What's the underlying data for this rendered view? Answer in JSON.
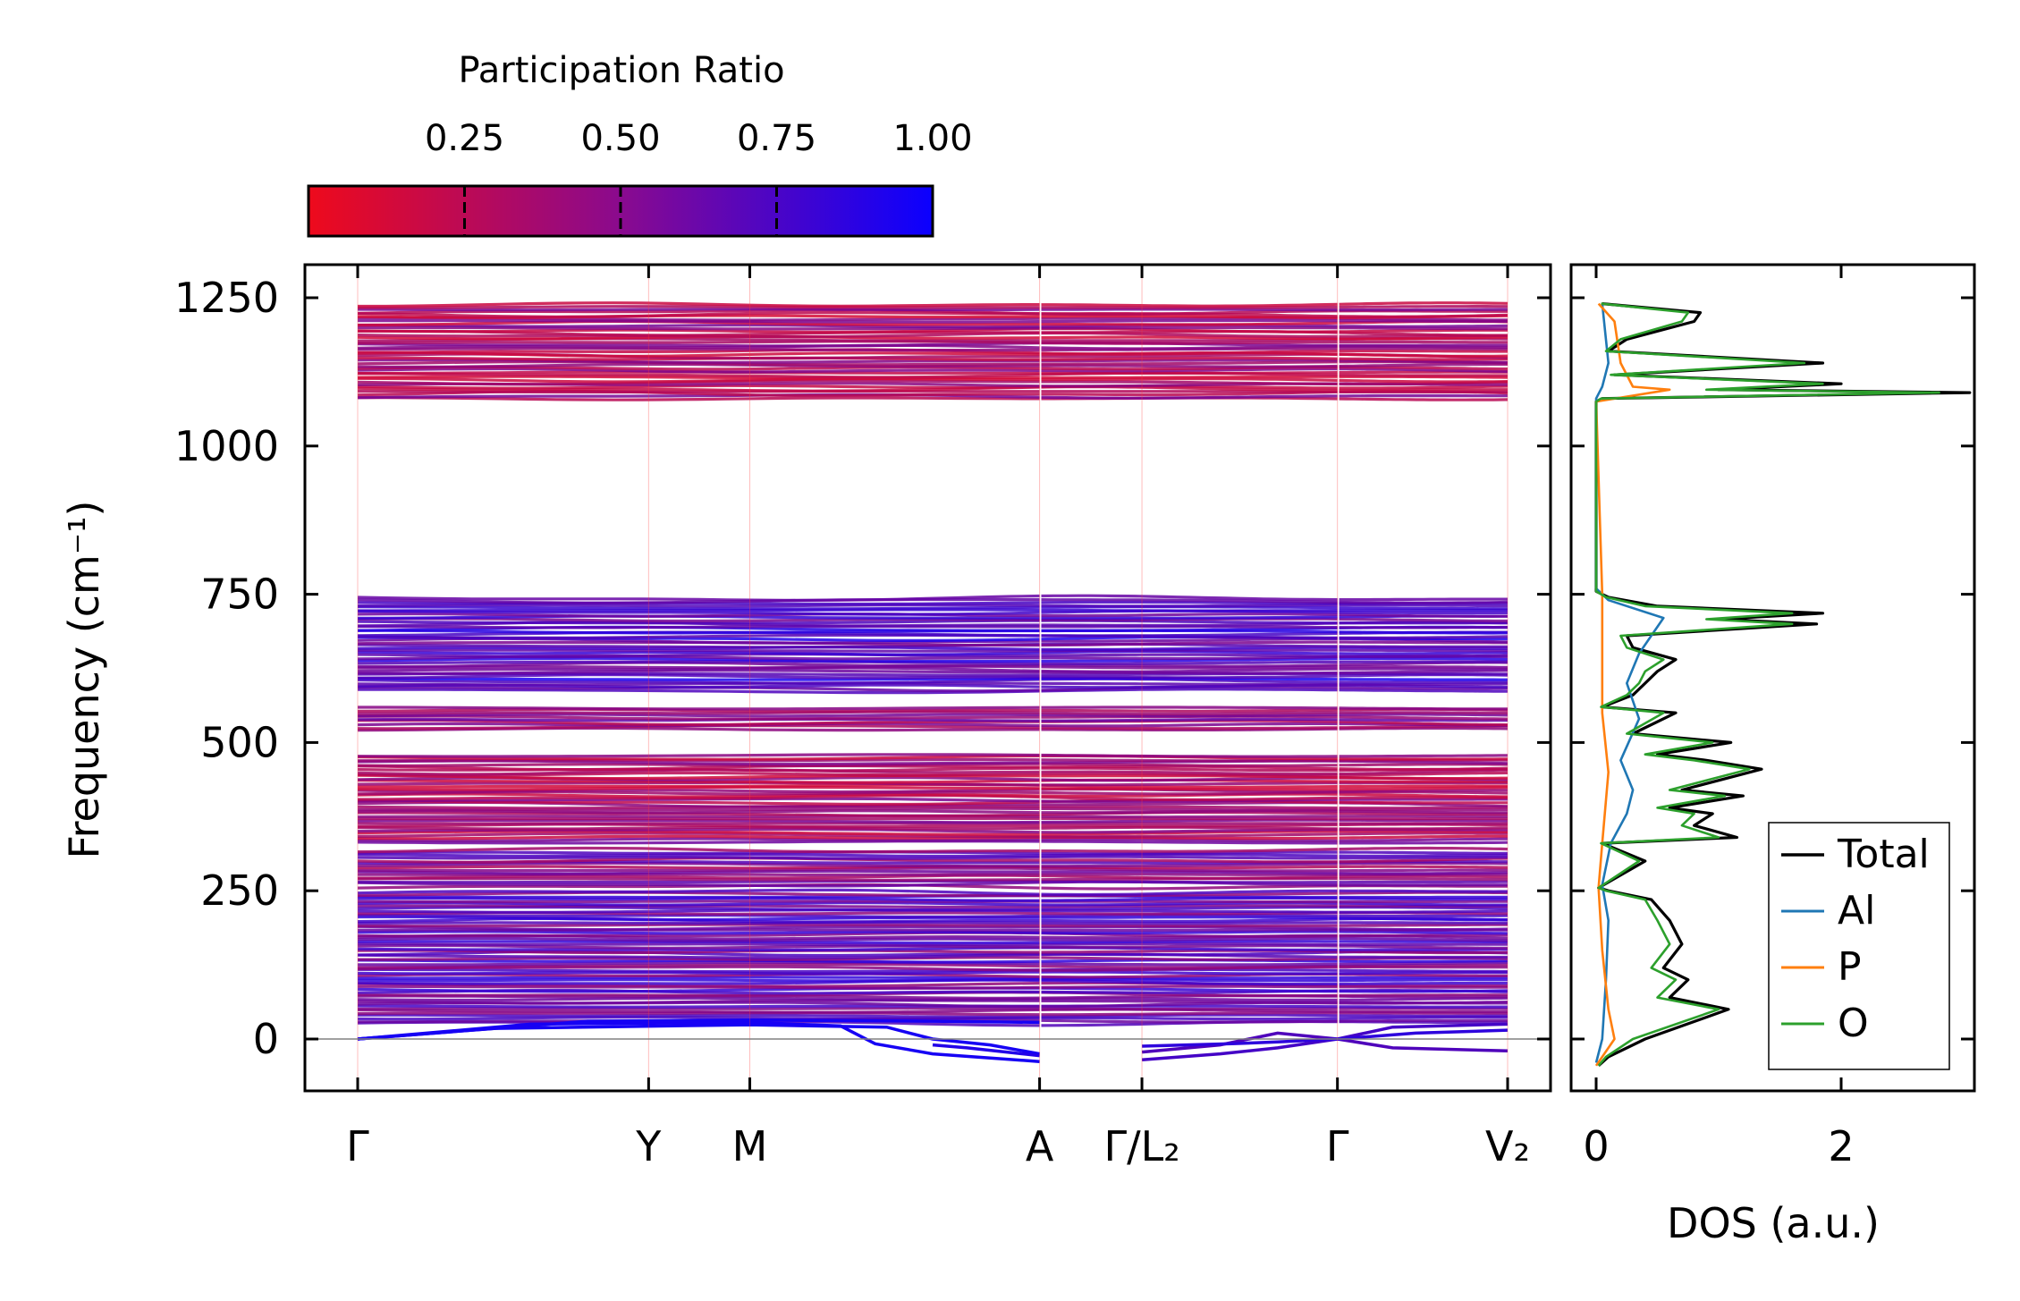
{
  "chart_data": [
    {
      "type": "line",
      "name": "phonon-band-structure",
      "ylabel": "Frequency (cm⁻¹)",
      "ylim": [
        -110,
        1300
      ],
      "yticks": [
        0,
        250,
        500,
        750,
        1000,
        1250
      ],
      "ytick_labels": [
        "0",
        "250",
        "500",
        "750",
        "1000",
        "1250"
      ],
      "kpath_positions": [
        0,
        0.253,
        0.341,
        0.593,
        0.682,
        0.852,
        1.0
      ],
      "kpath_labels": [
        "Γ",
        "Y",
        "M",
        "A",
        "Γ/L₂",
        "Γ",
        "V₂"
      ],
      "segment_breaks": [
        0.593,
        0.852
      ],
      "zero_line": 0,
      "band_groups": [
        {
          "from": 1078,
          "to": 1240,
          "participation": 0.32
        },
        {
          "from": 585,
          "to": 745,
          "participation": 0.72
        },
        {
          "from": 520,
          "to": 560,
          "participation": 0.45
        },
        {
          "from": 330,
          "to": 480,
          "participation": 0.35
        },
        {
          "from": 255,
          "to": 320,
          "participation": 0.5
        },
        {
          "from": 25,
          "to": 250,
          "participation": 0.62
        }
      ],
      "acoustic_note": "low-frequency branches dip to about -40 cm⁻¹ between M and A and beyond Γ/L₂"
    },
    {
      "type": "colorbar",
      "name": "participation-colorbar",
      "title": "Participation Ratio",
      "range": [
        0.0,
        1.0
      ],
      "ticks": [
        0.25,
        0.5,
        0.75,
        1.0
      ],
      "tick_labels": [
        "0.25",
        "0.50",
        "0.75",
        "1.00"
      ],
      "color_low": "#ee0a1c",
      "color_high": "#0b00ff"
    },
    {
      "type": "line",
      "name": "dos",
      "xlabel": "DOS (a.u.)",
      "xlim": [
        -0.15,
        3.2
      ],
      "xticks": [
        0,
        2
      ],
      "xtick_labels": [
        "0",
        "2"
      ],
      "legend_position": "bottom-right",
      "series": [
        {
          "name": "Total",
          "color": "#000000",
          "points": [
            [
              0.02,
              -45
            ],
            [
              0.1,
              -30
            ],
            [
              0.4,
              0
            ],
            [
              1.08,
              50
            ],
            [
              0.6,
              70
            ],
            [
              0.75,
              100
            ],
            [
              0.55,
              120
            ],
            [
              0.7,
              160
            ],
            [
              0.6,
              200
            ],
            [
              0.45,
              235
            ],
            [
              0.1,
              250
            ],
            [
              0.02,
              255
            ],
            [
              0.4,
              300
            ],
            [
              0.05,
              330
            ],
            [
              1.15,
              340
            ],
            [
              0.8,
              360
            ],
            [
              0.95,
              380
            ],
            [
              0.6,
              390
            ],
            [
              1.2,
              410
            ],
            [
              0.7,
              420
            ],
            [
              1.35,
              455
            ],
            [
              0.9,
              470
            ],
            [
              0.5,
              480
            ],
            [
              1.1,
              500
            ],
            [
              0.3,
              515
            ],
            [
              0.65,
              550
            ],
            [
              0.05,
              560
            ],
            [
              0.3,
              580
            ],
            [
              0.4,
              600
            ],
            [
              0.5,
              620
            ],
            [
              0.65,
              640
            ],
            [
              0.3,
              660
            ],
            [
              0.25,
              680
            ],
            [
              1.8,
              700
            ],
            [
              1.0,
              708
            ],
            [
              1.85,
              718
            ],
            [
              0.5,
              730
            ],
            [
              0.1,
              745
            ],
            [
              0.0,
              755
            ],
            [
              0.0,
              1075
            ],
            [
              0.05,
              1080
            ],
            [
              3.05,
              1090
            ],
            [
              1.0,
              1095
            ],
            [
              2.0,
              1105
            ],
            [
              0.15,
              1120
            ],
            [
              1.85,
              1140
            ],
            [
              0.1,
              1160
            ],
            [
              0.25,
              1180
            ],
            [
              0.8,
              1210
            ],
            [
              0.85,
              1225
            ],
            [
              0.05,
              1240
            ]
          ]
        },
        {
          "name": "Al",
          "color": "#1f77b4",
          "points": [
            [
              0.0,
              -40
            ],
            [
              0.05,
              0
            ],
            [
              0.08,
              100
            ],
            [
              0.1,
              200
            ],
            [
              0.05,
              260
            ],
            [
              0.12,
              330
            ],
            [
              0.25,
              380
            ],
            [
              0.3,
              420
            ],
            [
              0.2,
              470
            ],
            [
              0.35,
              540
            ],
            [
              0.25,
              600
            ],
            [
              0.35,
              650
            ],
            [
              0.55,
              710
            ],
            [
              0.1,
              740
            ],
            [
              0.0,
              760
            ],
            [
              0.0,
              1080
            ],
            [
              0.05,
              1100
            ],
            [
              0.1,
              1140
            ],
            [
              0.05,
              1240
            ]
          ]
        },
        {
          "name": "P",
          "color": "#ff7f0e",
          "points": [
            [
              0.0,
              -45
            ],
            [
              0.15,
              0
            ],
            [
              0.1,
              50
            ],
            [
              0.05,
              150
            ],
            [
              0.02,
              255
            ],
            [
              0.05,
              330
            ],
            [
              0.1,
              450
            ],
            [
              0.05,
              550
            ],
            [
              0.05,
              650
            ],
            [
              0.05,
              750
            ],
            [
              0.0,
              1075
            ],
            [
              0.6,
              1095
            ],
            [
              0.3,
              1100
            ],
            [
              0.2,
              1140
            ],
            [
              0.15,
              1210
            ],
            [
              0.02,
              1240
            ]
          ]
        },
        {
          "name": "O",
          "color": "#2ca02c",
          "points": [
            [
              0.02,
              -45
            ],
            [
              0.08,
              -30
            ],
            [
              0.3,
              0
            ],
            [
              1.0,
              50
            ],
            [
              0.5,
              70
            ],
            [
              0.65,
              100
            ],
            [
              0.45,
              120
            ],
            [
              0.6,
              160
            ],
            [
              0.5,
              200
            ],
            [
              0.4,
              235
            ],
            [
              0.08,
              250
            ],
            [
              0.02,
              255
            ],
            [
              0.35,
              300
            ],
            [
              0.04,
              330
            ],
            [
              1.0,
              340
            ],
            [
              0.7,
              360
            ],
            [
              0.8,
              380
            ],
            [
              0.5,
              390
            ],
            [
              1.05,
              410
            ],
            [
              0.6,
              420
            ],
            [
              1.25,
              455
            ],
            [
              0.8,
              470
            ],
            [
              0.4,
              480
            ],
            [
              0.95,
              500
            ],
            [
              0.25,
              515
            ],
            [
              0.55,
              550
            ],
            [
              0.04,
              560
            ],
            [
              0.25,
              580
            ],
            [
              0.35,
              600
            ],
            [
              0.4,
              620
            ],
            [
              0.55,
              640
            ],
            [
              0.25,
              660
            ],
            [
              0.2,
              680
            ],
            [
              1.6,
              700
            ],
            [
              0.9,
              708
            ],
            [
              1.6,
              718
            ],
            [
              0.4,
              730
            ],
            [
              0.08,
              745
            ],
            [
              0.0,
              755
            ],
            [
              0.0,
              1075
            ],
            [
              0.04,
              1080
            ],
            [
              2.8,
              1090
            ],
            [
              0.9,
              1095
            ],
            [
              1.85,
              1105
            ],
            [
              0.12,
              1120
            ],
            [
              1.7,
              1140
            ],
            [
              0.08,
              1160
            ],
            [
              0.2,
              1180
            ],
            [
              0.7,
              1210
            ],
            [
              0.75,
              1225
            ],
            [
              0.04,
              1240
            ]
          ]
        }
      ]
    }
  ]
}
